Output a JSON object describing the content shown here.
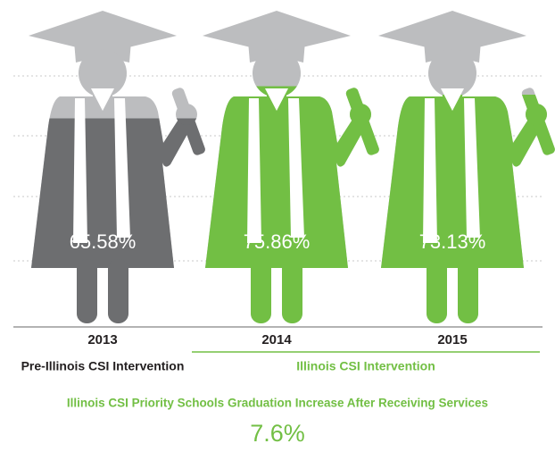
{
  "chart_data": {
    "type": "pictograph",
    "categories": [
      "2013",
      "2014",
      "2015"
    ],
    "values": [
      65.58,
      75.86,
      73.13
    ],
    "value_labels": [
      "65.58%",
      "75.86%",
      "73.13%"
    ],
    "colors": [
      "#6d6e70",
      "#72bf44",
      "#72bf44"
    ],
    "empty_color": "#bcbdbf",
    "ylim": [
      0,
      100
    ],
    "groups": [
      {
        "name": "Pre-Illinois CSI Intervention",
        "color": "#231f20"
      },
      {
        "name": "Illinois CSI Intervention",
        "color": "#72bf44"
      }
    ],
    "footnote": "Illinois CSI Priority Schools Graduation Increase After Receiving Services",
    "annotation": "7.6%"
  }
}
